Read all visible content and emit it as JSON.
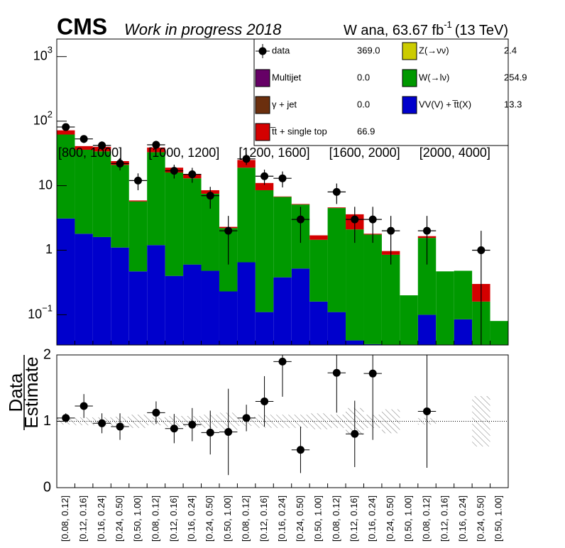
{
  "chart_data": [
    {
      "type": "bar",
      "stacked": true,
      "log_y": true,
      "title": "CMS",
      "subtitle": "Work in progress 2018",
      "lumi": [
        "W ana, 63.67 fb",
        "-1",
        "(13 TeV)"
      ],
      "groups": [
        "[800, 1000]",
        "[1000, 1200]",
        "[1200, 1600]",
        "[1600, 2000]",
        "[2000, 4000]"
      ],
      "ylim": [
        0.034,
        1870
      ],
      "yticks": [
        {
          "value": 1000,
          "label": "10",
          "exponent": "3"
        },
        {
          "value": 100,
          "label": "10",
          "exponent": "2"
        },
        10,
        1,
        {
          "value": 0.1,
          "label": "10",
          "exponent": "−1"
        }
      ],
      "legend": "top-right",
      "series": [
        {
          "name": "VV(V) + t̅t(X)",
          "color": "#0000cc",
          "yield": 13.3,
          "yield_label": "13.3",
          "values": [
            3.1,
            1.8,
            1.6,
            1.1,
            0.47,
            1.2,
            0.4,
            0.6,
            0.48,
            0.23,
            0.65,
            0.11,
            0.38,
            0.52,
            0.16,
            0.11,
            0.04,
            0.035,
            0,
            0,
            0.1,
            0,
            0.085,
            0,
            0
          ]
        },
        {
          "name": "W(→lν)",
          "color": "#009900",
          "yield": 254.9,
          "yield_label": "254.9",
          "values": [
            58.9,
            34.2,
            32.4,
            19.9,
            5.23,
            31.8,
            15.6,
            12.4,
            7.02,
            1.97,
            18.35,
            8.39,
            6.32,
            4.58,
            1.29,
            4.39,
            2.06,
            1.715,
            0.85,
            0.2,
            1.45,
            0.47,
            0.395,
            0.16,
            0.08
          ]
        },
        {
          "name": "Z(→νν)",
          "color": "#cccc00",
          "yield": 2.4,
          "yield_label": "2.4"
        },
        {
          "name": "t̅t + single top",
          "color": "#d40000",
          "yield": 66.9,
          "yield_label": "66.9",
          "values": [
            10,
            5,
            6,
            3,
            0.2,
            6,
            3,
            2,
            1,
            0.1,
            6,
            2.5,
            0.1,
            0.1,
            0.25,
            0.1,
            1.5,
            0.05,
            0.12,
            0,
            0.1,
            0,
            0,
            0.14,
            0
          ]
        },
        {
          "name": "γ + jet",
          "color": "#6b2f0e",
          "yield": 0,
          "yield_label": "0.0"
        },
        {
          "name": "Multijet",
          "color": "#660066",
          "yield": 0,
          "yield_label": "0.0"
        },
        {
          "name": "data",
          "color": "#000000",
          "yield": 369,
          "yield_label": "369.0",
          "points": true,
          "values": [
            81,
            53,
            42,
            22,
            12,
            43,
            17,
            15,
            7,
            2,
            26,
            14,
            13,
            3,
            null,
            8,
            3,
            3,
            2,
            null,
            2,
            null,
            null,
            1,
            null
          ],
          "errors": [
            9,
            7.3,
            6.5,
            4.7,
            3.5,
            6.6,
            4.1,
            3.9,
            2.6,
            1.4,
            5.1,
            3.7,
            3.6,
            1.7,
            null,
            2.8,
            1.7,
            1.7,
            1.4,
            null,
            1.4,
            null,
            null,
            1,
            null
          ]
        }
      ]
    },
    {
      "type": "errorbar",
      "ylabel": [
        "Data",
        "Estimate"
      ],
      "categories": [
        "[0.08, 0.12]",
        "[0.12, 0.16]",
        "[0.16, 0.24]",
        "[0.24, 0.50]",
        "[0.50, 1.00]",
        "[0.08, 0.12]",
        "[0.12, 0.16]",
        "[0.16, 0.24]",
        "[0.24, 0.50]",
        "[0.50, 1.00]",
        "[0.08, 0.12]",
        "[0.12, 0.16]",
        "[0.16, 0.24]",
        "[0.24, 0.50]",
        "[0.50, 1.00]",
        "[0.08, 0.12]",
        "[0.12, 0.16]",
        "[0.16, 0.24]",
        "[0.24, 0.50]",
        "[0.50, 1.00]",
        "[0.08, 0.12]",
        "[0.12, 0.16]",
        "[0.16, 0.24]",
        "[0.24, 0.50]",
        "[0.50, 1.00]"
      ],
      "ylim": [
        0,
        2
      ],
      "yticks": [
        0,
        1,
        2
      ],
      "reference": 1,
      "values": [
        1.05,
        1.23,
        0.97,
        0.92,
        null,
        1.13,
        0.89,
        0.95,
        0.83,
        0.84,
        1.05,
        1.3,
        1.9,
        0.57,
        null,
        1.73,
        0.81,
        1.72,
        null,
        null,
        1.15,
        null,
        null,
        null,
        null
      ],
      "errors": [
        0.07,
        0.18,
        0.15,
        0.2,
        null,
        0.17,
        0.22,
        0.25,
        0.33,
        0.65,
        0.2,
        0.38,
        0.53,
        0.35,
        null,
        0.6,
        0.5,
        1.0,
        null,
        null,
        0.85,
        null,
        null,
        null,
        null
      ],
      "uncertainty": [
        0.05,
        0.06,
        0.06,
        0.07,
        0.1,
        0.06,
        0.08,
        0.08,
        0.1,
        0.13,
        0.07,
        0.1,
        0.1,
        0.1,
        0.12,
        0.1,
        0.2,
        0.1,
        0.18,
        null,
        0.05,
        null,
        null,
        0.38,
        null
      ]
    }
  ]
}
